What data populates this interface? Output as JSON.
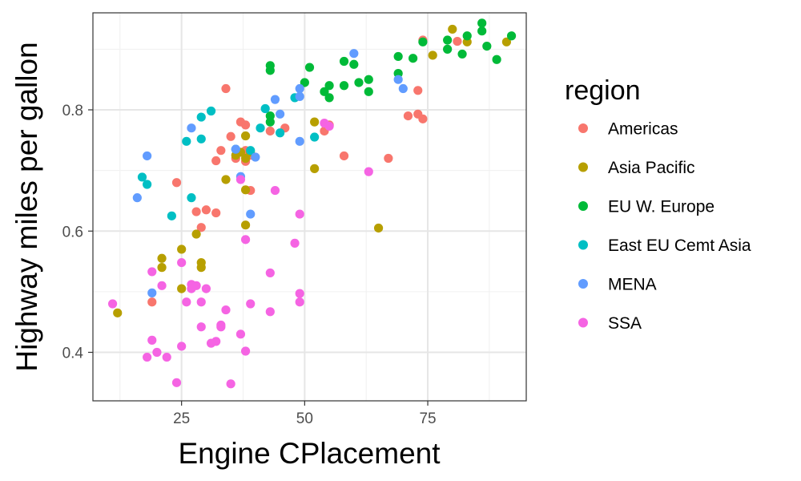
{
  "chart_data": {
    "type": "scatter",
    "xlabel": "Engine CPlacement",
    "ylabel": "Highway miles per gallon",
    "xlim": [
      7,
      95
    ],
    "ylim": [
      0.32,
      0.96
    ],
    "x_ticks": [
      25,
      50,
      75
    ],
    "y_ticks": [
      0.4,
      0.6,
      0.8
    ],
    "x_tick_labels": [
      "25",
      "50",
      "75"
    ],
    "y_tick_labels": [
      "0.4",
      "0.6",
      "0.8"
    ],
    "grid": true,
    "legend": {
      "title": "region",
      "position": "right"
    },
    "series": [
      {
        "name": "Americas",
        "color": "#F8766D",
        "points": [
          [
            34,
            0.835
          ],
          [
            24,
            0.68
          ],
          [
            28,
            0.632
          ],
          [
            30,
            0.635
          ],
          [
            32,
            0.63
          ],
          [
            29,
            0.606
          ],
          [
            32,
            0.716
          ],
          [
            33,
            0.733
          ],
          [
            35,
            0.756
          ],
          [
            36,
            0.72
          ],
          [
            37,
            0.78
          ],
          [
            38,
            0.775
          ],
          [
            38,
            0.733
          ],
          [
            39,
            0.725
          ],
          [
            38,
            0.715
          ],
          [
            39,
            0.667
          ],
          [
            43,
            0.765
          ],
          [
            46,
            0.77
          ],
          [
            54,
            0.765
          ],
          [
            55,
            0.775
          ],
          [
            58,
            0.724
          ],
          [
            67,
            0.72
          ],
          [
            71,
            0.79
          ],
          [
            73,
            0.793
          ],
          [
            73,
            0.832
          ],
          [
            74,
            0.785
          ],
          [
            74,
            0.915
          ],
          [
            81,
            0.913
          ],
          [
            19,
            0.483
          ]
        ]
      },
      {
        "name": "Asia Pacific",
        "color": "#B79F00",
        "points": [
          [
            12,
            0.465
          ],
          [
            21,
            0.555
          ],
          [
            21,
            0.54
          ],
          [
            25,
            0.57
          ],
          [
            25,
            0.505
          ],
          [
            28,
            0.595
          ],
          [
            29,
            0.548
          ],
          [
            29,
            0.54
          ],
          [
            34,
            0.685
          ],
          [
            36,
            0.725
          ],
          [
            37,
            0.73
          ],
          [
            38,
            0.757
          ],
          [
            38,
            0.72
          ],
          [
            38,
            0.668
          ],
          [
            38,
            0.61
          ],
          [
            39,
            0.73
          ],
          [
            52,
            0.78
          ],
          [
            52,
            0.703
          ],
          [
            65,
            0.605
          ],
          [
            76,
            0.89
          ],
          [
            80,
            0.933
          ],
          [
            83,
            0.912
          ],
          [
            91,
            0.912
          ]
        ]
      },
      {
        "name": "EU W. Europe",
        "color": "#00BA38",
        "points": [
          [
            43,
            0.873
          ],
          [
            43,
            0.865
          ],
          [
            43,
            0.79
          ],
          [
            43,
            0.78
          ],
          [
            50,
            0.845
          ],
          [
            51,
            0.87
          ],
          [
            54,
            0.83
          ],
          [
            55,
            0.84
          ],
          [
            55,
            0.82
          ],
          [
            58,
            0.84
          ],
          [
            58,
            0.88
          ],
          [
            60,
            0.875
          ],
          [
            61,
            0.845
          ],
          [
            63,
            0.85
          ],
          [
            63,
            0.83
          ],
          [
            69,
            0.888
          ],
          [
            69,
            0.86
          ],
          [
            72,
            0.885
          ],
          [
            74,
            0.912
          ],
          [
            79,
            0.9
          ],
          [
            79,
            0.915
          ],
          [
            82,
            0.892
          ],
          [
            83,
            0.922
          ],
          [
            86,
            0.943
          ],
          [
            86,
            0.93
          ],
          [
            87,
            0.905
          ],
          [
            89,
            0.883
          ],
          [
            92,
            0.922
          ]
        ]
      },
      {
        "name": "East EU Cemt Asia",
        "color": "#00BFC4",
        "points": [
          [
            17,
            0.689
          ],
          [
            18,
            0.677
          ],
          [
            23,
            0.625
          ],
          [
            26,
            0.748
          ],
          [
            27,
            0.655
          ],
          [
            29,
            0.788
          ],
          [
            29,
            0.752
          ],
          [
            31,
            0.798
          ],
          [
            36,
            0.735
          ],
          [
            39,
            0.733
          ],
          [
            41,
            0.77
          ],
          [
            42,
            0.802
          ],
          [
            45,
            0.762
          ],
          [
            48,
            0.82
          ],
          [
            52,
            0.755
          ]
        ]
      },
      {
        "name": "MENA",
        "color": "#619CFF",
        "points": [
          [
            16,
            0.655
          ],
          [
            18,
            0.724
          ],
          [
            19,
            0.498
          ],
          [
            27,
            0.77
          ],
          [
            36,
            0.735
          ],
          [
            37,
            0.69
          ],
          [
            39,
            0.628
          ],
          [
            40,
            0.722
          ],
          [
            44,
            0.817
          ],
          [
            45,
            0.793
          ],
          [
            49,
            0.748
          ],
          [
            49,
            0.835
          ],
          [
            49,
            0.822
          ],
          [
            60,
            0.893
          ],
          [
            69,
            0.85
          ],
          [
            70,
            0.835
          ]
        ]
      },
      {
        "name": "SSA",
        "color": "#F564E3",
        "points": [
          [
            11,
            0.48
          ],
          [
            18,
            0.392
          ],
          [
            19,
            0.42
          ],
          [
            19,
            0.533
          ],
          [
            20,
            0.4
          ],
          [
            21,
            0.51
          ],
          [
            22,
            0.392
          ],
          [
            24,
            0.35
          ],
          [
            25,
            0.41
          ],
          [
            25,
            0.548
          ],
          [
            26,
            0.483
          ],
          [
            27,
            0.512
          ],
          [
            27,
            0.505
          ],
          [
            28,
            0.51
          ],
          [
            29,
            0.483
          ],
          [
            29,
            0.442
          ],
          [
            30,
            0.505
          ],
          [
            31,
            0.415
          ],
          [
            32,
            0.418
          ],
          [
            33,
            0.445
          ],
          [
            33,
            0.442
          ],
          [
            34,
            0.47
          ],
          [
            35,
            0.348
          ],
          [
            37,
            0.685
          ],
          [
            37,
            0.43
          ],
          [
            38,
            0.586
          ],
          [
            38,
            0.402
          ],
          [
            39,
            0.48
          ],
          [
            43,
            0.531
          ],
          [
            43,
            0.467
          ],
          [
            44,
            0.667
          ],
          [
            48,
            0.58
          ],
          [
            49,
            0.628
          ],
          [
            49,
            0.497
          ],
          [
            49,
            0.483
          ],
          [
            54,
            0.778
          ],
          [
            55,
            0.773
          ],
          [
            63,
            0.698
          ]
        ]
      }
    ]
  }
}
